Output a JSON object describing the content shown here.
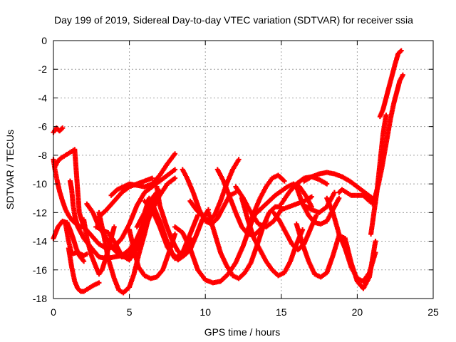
{
  "chart_data": {
    "type": "scatter",
    "title": "Day 199 of 2019, Sidereal Day-to-day VTEC variation (SDTVAR) for receiver ssia",
    "xlabel": "GPS time / hours",
    "ylabel": "SDTVAR / TECUs",
    "xlim": [
      0,
      25
    ],
    "ylim": [
      -18,
      0
    ],
    "xticks": [
      "0",
      "5",
      "10",
      "15",
      "20",
      "25"
    ],
    "yticks": [
      "0",
      "-2",
      "-4",
      "-6",
      "-8",
      "-10",
      "-12",
      "-14",
      "-16",
      "-18"
    ],
    "grid": true,
    "marker": "plus",
    "color": "#ff0000",
    "series": [
      {
        "x": [
          0.0,
          0.2,
          0.4,
          0.6
        ],
        "y": [
          -6.4,
          -6.1,
          -6.3,
          -6.1
        ]
      },
      {
        "x": [
          0.0,
          0.1,
          0.25,
          0.4,
          0.6,
          0.8,
          1.0,
          1.2,
          1.5,
          1.8,
          2.0
        ],
        "y": [
          -8.3,
          -9.0,
          -9.8,
          -10.5,
          -11.2,
          -11.8,
          -12.2,
          -12.5,
          -12.8,
          -13.0,
          -13.0
        ]
      },
      {
        "x": [
          0.0,
          0.3,
          0.6,
          0.9,
          1.1,
          1.3,
          1.5,
          1.7,
          2.0
        ],
        "y": [
          -13.8,
          -13.0,
          -12.6,
          -12.7,
          -13.2,
          -13.8,
          -14.5,
          -15.0,
          -15.4
        ]
      },
      {
        "x": [
          0.1,
          0.3,
          0.5,
          0.8,
          1.1,
          1.4,
          1.7,
          2.0,
          2.5,
          3.0,
          3.5,
          4.0,
          4.5,
          5.0,
          5.5,
          6.0,
          6.5,
          7.0,
          7.5,
          8.0
        ],
        "y": [
          -8.8,
          -8.4,
          -8.2,
          -8.0,
          -7.8,
          -7.6,
          -12.0,
          -13.0,
          -13.6,
          -14.2,
          -14.5,
          -14.4,
          -13.8,
          -12.8,
          -11.5,
          -10.6,
          -10.2,
          -9.8,
          -9.4,
          -9.0
        ]
      },
      {
        "x": [
          0.8,
          1.0,
          1.2,
          1.5,
          1.8,
          2.0,
          2.2
        ],
        "y": [
          -12.8,
          -14.0,
          -14.9,
          -14.8,
          -14.9,
          -15.0,
          -14.9
        ]
      },
      {
        "x": [
          1.1,
          1.2,
          1.3,
          1.4,
          1.6,
          1.8,
          2.0,
          2.3,
          2.6,
          3.0,
          3.5,
          4.0,
          4.5,
          5.0,
          5.5,
          6.0,
          6.5,
          6.8
        ],
        "y": [
          -9.8,
          -10.4,
          -11.5,
          -12.2,
          -13.0,
          -13.4,
          -13.8,
          -14.2,
          -14.6,
          -15.1,
          -15.2,
          -15.1,
          -15.0,
          -14.6,
          -13.8,
          -12.6,
          -11.0,
          -10.6
        ]
      },
      {
        "x": [
          1.0,
          1.2,
          1.4,
          1.6,
          1.8,
          2.0,
          2.3,
          2.6,
          3.0
        ],
        "y": [
          -14.5,
          -15.8,
          -16.8,
          -17.3,
          -17.5,
          -17.5,
          -17.3,
          -17.1,
          -16.9
        ]
      },
      {
        "x": [
          2.0,
          2.2,
          2.5,
          2.8,
          3.0,
          3.2,
          3.5,
          3.8,
          4.0
        ],
        "y": [
          -12.5,
          -13.8,
          -15.0,
          -15.8,
          -16.3,
          -16.0,
          -15.0,
          -13.8,
          -13.0
        ]
      },
      {
        "x": [
          2.2,
          2.6,
          3.0,
          3.5,
          4.0,
          4.5,
          5.0,
          5.5,
          6.0,
          6.5
        ],
        "y": [
          -11.4,
          -12.0,
          -13.0,
          -13.8,
          -14.6,
          -15.1,
          -15.0,
          -14.2,
          -12.8,
          -11.8
        ]
      },
      {
        "x": [
          2.8,
          3.2,
          3.6,
          4.0,
          4.5,
          5.0,
          5.5,
          6.0,
          6.5,
          7.0,
          7.5,
          8.0
        ],
        "y": [
          -13.0,
          -13.2,
          -13.4,
          -14.0,
          -15.0,
          -15.3,
          -14.5,
          -13.2,
          -11.8,
          -10.8,
          -10.0,
          -9.6
        ]
      },
      {
        "x": [
          3.0,
          3.5,
          4.0,
          4.5,
          5.0,
          5.5,
          6.0,
          6.5
        ],
        "y": [
          -12.3,
          -11.8,
          -11.2,
          -10.6,
          -10.2,
          -10.0,
          -9.8,
          -9.6
        ]
      },
      {
        "x": [
          3.0,
          3.3,
          3.6,
          4.0,
          4.3,
          4.6,
          5.0,
          5.3,
          5.6,
          6.0,
          6.3,
          6.6,
          7.0
        ],
        "y": [
          -12.0,
          -13.5,
          -15.2,
          -16.6,
          -17.4,
          -17.6,
          -17.2,
          -16.3,
          -15.0,
          -13.5,
          -12.2,
          -11.2,
          -10.5
        ]
      },
      {
        "x": [
          3.8,
          4.2,
          4.6,
          5.0,
          5.5,
          6.0,
          6.5,
          7.0,
          7.5,
          8.0
        ],
        "y": [
          -10.8,
          -10.4,
          -10.2,
          -10.0,
          -10.1,
          -10.2,
          -10.0,
          -9.4,
          -8.6,
          -7.9
        ]
      },
      {
        "x": [
          5.0,
          5.3,
          5.6,
          6.0,
          6.4,
          6.8,
          7.2,
          7.6,
          8.0
        ],
        "y": [
          -13.2,
          -14.6,
          -15.8,
          -16.4,
          -16.6,
          -16.5,
          -16.0,
          -14.8,
          -13.5
        ]
      },
      {
        "x": [
          5.5,
          6.0,
          6.3,
          6.6,
          7.0,
          7.4,
          7.8,
          8.2,
          8.6,
          9.0
        ],
        "y": [
          -13.0,
          -12.0,
          -11.0,
          -11.6,
          -12.6,
          -13.8,
          -14.8,
          -15.3,
          -15.0,
          -13.8
        ]
      },
      {
        "x": [
          6.0,
          6.5,
          7.0,
          7.5,
          8.0,
          8.5,
          9.0,
          9.5
        ],
        "y": [
          -11.2,
          -11.8,
          -13.0,
          -14.4,
          -15.2,
          -14.8,
          -13.5,
          -12.2
        ]
      },
      {
        "x": [
          6.8,
          7.0,
          7.4,
          7.8,
          8.2,
          8.6,
          9.0,
          9.4,
          9.8,
          10.2
        ],
        "y": [
          -10.2,
          -11.5,
          -12.8,
          -13.9,
          -14.7,
          -15.0,
          -14.6,
          -13.6,
          -12.5,
          -11.8
        ]
      },
      {
        "x": [
          8.5,
          8.8,
          9.2,
          9.6,
          10.0,
          10.4,
          10.8,
          11.2,
          11.6,
          12.0
        ],
        "y": [
          -9.0,
          -9.6,
          -10.6,
          -11.8,
          -12.6,
          -12.8,
          -12.4,
          -11.6,
          -10.8,
          -10.6
        ]
      },
      {
        "x": [
          8.0,
          8.5,
          9.0,
          9.5,
          10.0,
          10.5,
          11.0,
          11.5,
          12.0,
          12.5,
          13.0,
          13.4
        ],
        "y": [
          -13.0,
          -13.4,
          -14.5,
          -16.0,
          -16.7,
          -16.9,
          -16.8,
          -16.3,
          -15.5,
          -14.3,
          -12.8,
          -11.8
        ]
      },
      {
        "x": [
          9.0,
          9.4,
          9.8,
          10.2,
          10.6,
          11.0,
          11.4,
          11.8,
          12.2
        ],
        "y": [
          -11.2,
          -11.8,
          -12.2,
          -12.6,
          -12.2,
          -11.2,
          -10.0,
          -9.0,
          -8.3
        ]
      },
      {
        "x": [
          10.8,
          11.2,
          11.6,
          12.0,
          12.4,
          12.8,
          13.2,
          13.6,
          14.0
        ],
        "y": [
          -9.0,
          -9.8,
          -10.9,
          -12.0,
          -13.0,
          -13.5,
          -13.6,
          -13.2,
          -12.6
        ]
      },
      {
        "x": [
          10.2,
          10.6,
          11.0,
          11.4,
          11.8,
          12.2,
          12.6,
          13.0,
          13.4,
          13.8,
          14.2,
          14.6,
          15.0
        ],
        "y": [
          -12.0,
          -13.4,
          -14.8,
          -15.7,
          -16.4,
          -16.6,
          -16.2,
          -15.5,
          -14.3,
          -13.0,
          -12.0,
          -11.6,
          -11.6
        ]
      },
      {
        "x": [
          12.0,
          12.5,
          13.0,
          13.5,
          14.0,
          14.5,
          15.0,
          15.5,
          16.0,
          16.5,
          17.0
        ],
        "y": [
          -10.2,
          -11.0,
          -12.0,
          -12.8,
          -13.0,
          -12.6,
          -11.8,
          -11.6,
          -11.4,
          -11.2,
          -10.9
        ]
      },
      {
        "x": [
          12.4,
          12.8,
          13.2,
          13.6,
          14.0,
          14.4,
          14.8,
          15.2,
          15.6,
          16.0,
          16.4
        ],
        "y": [
          -11.0,
          -12.5,
          -13.8,
          -14.6,
          -15.4,
          -16.0,
          -16.4,
          -16.2,
          -15.4,
          -14.2,
          -13.2
        ]
      },
      {
        "x": [
          12.8,
          13.2,
          13.6,
          14.0,
          14.4,
          14.8,
          15.2
        ],
        "y": [
          -13.2,
          -12.0,
          -11.0,
          -10.2,
          -9.6,
          -9.4,
          -9.8
        ]
      },
      {
        "x": [
          13.4,
          13.8,
          14.2,
          14.6,
          15.0,
          15.4,
          15.8,
          16.2,
          16.6,
          17.0
        ],
        "y": [
          -12.0,
          -11.6,
          -11.2,
          -10.8,
          -10.5,
          -10.2,
          -10.0,
          -10.2,
          -10.8,
          -11.6
        ]
      },
      {
        "x": [
          14.5,
          14.9,
          15.3,
          15.7,
          16.1,
          16.5,
          16.9,
          17.3
        ],
        "y": [
          -12.0,
          -12.6,
          -13.4,
          -14.2,
          -14.6,
          -14.2,
          -13.2,
          -12.2
        ]
      },
      {
        "x": [
          15.0,
          15.5,
          16.0,
          16.5,
          17.0,
          17.5,
          18.0
        ],
        "y": [
          -11.4,
          -10.6,
          -10.0,
          -9.6,
          -9.5,
          -9.7,
          -10.0
        ]
      },
      {
        "x": [
          16.5,
          17.0,
          17.5,
          18.0,
          18.5
        ],
        "y": [
          -11.5,
          -11.8,
          -12.0,
          -11.6,
          -10.6
        ]
      },
      {
        "x": [
          16.0,
          16.4,
          16.8,
          17.2,
          17.6,
          18.0,
          18.4,
          18.8
        ],
        "y": [
          -10.2,
          -11.4,
          -12.2,
          -12.7,
          -12.8,
          -12.6,
          -11.8,
          -11.0
        ]
      },
      {
        "x": [
          16.5,
          17.0,
          17.5,
          18.0,
          18.5,
          19.0,
          19.5,
          20.0,
          20.5,
          21.0
        ],
        "y": [
          -9.8,
          -9.5,
          -9.3,
          -9.2,
          -9.3,
          -9.5,
          -9.8,
          -10.2,
          -10.6,
          -11.0
        ]
      },
      {
        "x": [
          16.0,
          16.4,
          16.8,
          17.2,
          17.6,
          18.0,
          18.4,
          18.8,
          19.2,
          19.6,
          20.0,
          20.4,
          20.8,
          21.2
        ],
        "y": [
          -12.8,
          -14.2,
          -15.4,
          -16.3,
          -16.5,
          -16.2,
          -15.0,
          -13.6,
          -13.8,
          -15.5,
          -16.8,
          -17.3,
          -16.5,
          -14.0
        ]
      },
      {
        "x": [
          18.0,
          18.4,
          18.8,
          19.2,
          19.6,
          20.0,
          20.4,
          20.8,
          21.2
        ],
        "y": [
          -11.0,
          -12.0,
          -13.5,
          -14.5,
          -15.8,
          -16.6,
          -16.8,
          -16.2,
          -14.8
        ]
      },
      {
        "x": [
          18.8,
          19.0,
          19.3,
          19.6,
          20.0,
          20.4,
          20.8,
          21.2
        ],
        "y": [
          -10.6,
          -10.4,
          -10.6,
          -10.8,
          -10.8,
          -10.8,
          -11.2,
          -11.3
        ]
      },
      {
        "x": [
          20.9,
          21.1,
          21.3,
          21.5,
          21.7,
          21.9
        ],
        "y": [
          -13.5,
          -12.0,
          -10.5,
          -8.5,
          -6.5,
          -5.2
        ]
      },
      {
        "x": [
          21.0,
          21.2,
          21.4,
          21.6,
          21.8,
          22.0,
          22.2,
          22.4,
          22.6,
          22.8,
          23.0
        ],
        "y": [
          -11.4,
          -10.8,
          -10.0,
          -9.0,
          -7.8,
          -6.6,
          -5.4,
          -4.4,
          -3.6,
          -2.8,
          -2.4
        ]
      },
      {
        "x": [
          21.5,
          21.7,
          21.9,
          22.1,
          22.3,
          22.5,
          22.7,
          22.9
        ],
        "y": [
          -5.3,
          -4.8,
          -4.0,
          -3.2,
          -2.4,
          -1.6,
          -0.9,
          -0.7
        ]
      }
    ]
  }
}
